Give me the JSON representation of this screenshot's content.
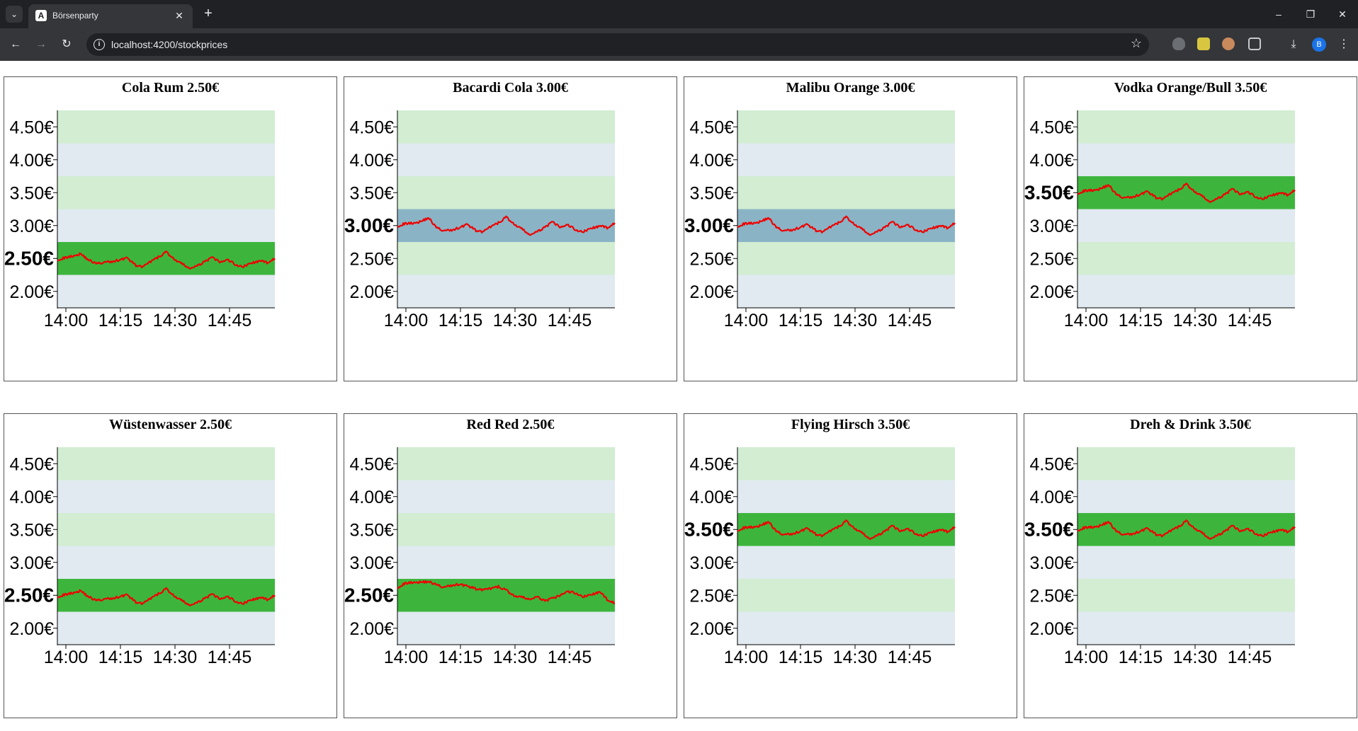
{
  "browser": {
    "tab_title": "Börsenparty",
    "favicon_letter": "A",
    "url": "localhost:4200/stockprices",
    "profile_initial": "B"
  },
  "chart_data": [
    {
      "type": "line",
      "title": "Cola Rum 2.50€",
      "price": 2.5,
      "ylim": [
        1.75,
        4.75
      ],
      "yticks": [
        "2.00€",
        "2.50€",
        "3.00€",
        "3.50€",
        "4.00€",
        "4.50€"
      ],
      "xticks": [
        "14:00",
        "14:15",
        "14:30",
        "14:45"
      ],
      "series": [
        {
          "values": [
            2.48,
            2.51,
            2.54,
            2.57,
            2.48,
            2.42,
            2.44,
            2.45,
            2.48,
            2.51,
            2.4,
            2.37,
            2.45,
            2.52,
            2.6,
            2.49,
            2.42,
            2.35,
            2.38,
            2.46,
            2.51,
            2.44,
            2.48,
            2.4,
            2.38,
            2.43,
            2.46,
            2.44,
            2.5
          ]
        }
      ]
    },
    {
      "type": "line",
      "title": "Bacardi Cola 3.00€",
      "price": 3.0,
      "ylim": [
        1.75,
        4.75
      ],
      "yticks": [
        "2.00€",
        "2.50€",
        "3.00€",
        "3.50€",
        "4.00€",
        "4.50€"
      ],
      "xticks": [
        "14:00",
        "14:15",
        "14:30",
        "14:45"
      ],
      "series": [
        {
          "values": [
            2.99,
            3.03,
            3.04,
            3.06,
            3.12,
            2.97,
            2.92,
            2.93,
            2.97,
            3.02,
            2.93,
            2.9,
            2.98,
            3.04,
            3.13,
            3.02,
            2.95,
            2.86,
            2.9,
            2.98,
            3.05,
            2.97,
            3.01,
            2.93,
            2.91,
            2.96,
            2.99,
            2.97,
            3.04
          ]
        }
      ]
    },
    {
      "type": "line",
      "title": "Malibu Orange 3.00€",
      "price": 3.0,
      "ylim": [
        1.75,
        4.75
      ],
      "yticks": [
        "2.00€",
        "2.50€",
        "3.00€",
        "3.50€",
        "4.00€",
        "4.50€"
      ],
      "xticks": [
        "14:00",
        "14:15",
        "14:30",
        "14:45"
      ],
      "series": [
        {
          "values": [
            2.99,
            3.03,
            3.04,
            3.06,
            3.12,
            2.97,
            2.92,
            2.93,
            2.97,
            3.02,
            2.93,
            2.9,
            2.98,
            3.04,
            3.13,
            3.02,
            2.95,
            2.86,
            2.9,
            2.98,
            3.05,
            2.97,
            3.01,
            2.93,
            2.91,
            2.96,
            2.99,
            2.97,
            3.04
          ]
        }
      ]
    },
    {
      "type": "line",
      "title": "Vodka Orange/Bull 3.50€",
      "price": 3.5,
      "ylim": [
        1.75,
        4.75
      ],
      "yticks": [
        "2.00€",
        "2.50€",
        "3.00€",
        "3.50€",
        "4.00€",
        "4.50€"
      ],
      "xticks": [
        "14:00",
        "14:15",
        "14:30",
        "14:45"
      ],
      "series": [
        {
          "values": [
            3.49,
            3.53,
            3.54,
            3.56,
            3.62,
            3.47,
            3.42,
            3.43,
            3.47,
            3.52,
            3.43,
            3.4,
            3.48,
            3.54,
            3.63,
            3.52,
            3.45,
            3.36,
            3.4,
            3.48,
            3.55,
            3.47,
            3.51,
            3.43,
            3.41,
            3.46,
            3.49,
            3.47,
            3.54
          ]
        }
      ]
    },
    {
      "type": "line",
      "title": "Wüstenwasser 2.50€",
      "price": 2.5,
      "ylim": [
        1.75,
        4.75
      ],
      "yticks": [
        "2.00€",
        "2.50€",
        "3.00€",
        "3.50€",
        "4.00€",
        "4.50€"
      ],
      "xticks": [
        "14:00",
        "14:15",
        "14:30",
        "14:45"
      ],
      "series": [
        {
          "values": [
            2.48,
            2.51,
            2.54,
            2.57,
            2.48,
            2.42,
            2.44,
            2.45,
            2.48,
            2.51,
            2.4,
            2.37,
            2.45,
            2.52,
            2.6,
            2.49,
            2.42,
            2.35,
            2.38,
            2.46,
            2.51,
            2.44,
            2.48,
            2.4,
            2.38,
            2.43,
            2.46,
            2.44,
            2.5
          ]
        }
      ]
    },
    {
      "type": "line",
      "title": "Red Red 2.50€",
      "price": 2.5,
      "ylim": [
        1.75,
        4.75
      ],
      "yticks": [
        "2.00€",
        "2.50€",
        "3.00€",
        "3.50€",
        "4.00€",
        "4.50€"
      ],
      "xticks": [
        "14:00",
        "14:15",
        "14:30",
        "14:45"
      ],
      "series": [
        {
          "values": [
            2.62,
            2.68,
            2.7,
            2.7,
            2.71,
            2.66,
            2.62,
            2.65,
            2.67,
            2.64,
            2.6,
            2.58,
            2.6,
            2.63,
            2.58,
            2.49,
            2.47,
            2.44,
            2.47,
            2.42,
            2.45,
            2.5,
            2.56,
            2.53,
            2.48,
            2.51,
            2.55,
            2.44,
            2.38
          ]
        }
      ]
    },
    {
      "type": "line",
      "title": "Flying Hirsch 3.50€",
      "price": 3.5,
      "ylim": [
        1.75,
        4.75
      ],
      "yticks": [
        "2.00€",
        "2.50€",
        "3.00€",
        "3.50€",
        "4.00€",
        "4.50€"
      ],
      "xticks": [
        "14:00",
        "14:15",
        "14:30",
        "14:45"
      ],
      "series": [
        {
          "values": [
            3.49,
            3.53,
            3.54,
            3.56,
            3.62,
            3.47,
            3.42,
            3.43,
            3.47,
            3.52,
            3.43,
            3.4,
            3.48,
            3.54,
            3.63,
            3.52,
            3.45,
            3.36,
            3.4,
            3.48,
            3.55,
            3.47,
            3.51,
            3.43,
            3.41,
            3.46,
            3.49,
            3.47,
            3.54
          ]
        }
      ]
    },
    {
      "type": "line",
      "title": "Dreh & Drink 3.50€",
      "price": 3.5,
      "ylim": [
        1.75,
        4.75
      ],
      "yticks": [
        "2.00€",
        "2.50€",
        "3.00€",
        "3.50€",
        "4.00€",
        "4.50€"
      ],
      "xticks": [
        "14:00",
        "14:15",
        "14:30",
        "14:45"
      ],
      "series": [
        {
          "values": [
            3.49,
            3.53,
            3.54,
            3.56,
            3.62,
            3.47,
            3.42,
            3.43,
            3.47,
            3.52,
            3.43,
            3.4,
            3.48,
            3.54,
            3.63,
            3.52,
            3.45,
            3.36,
            3.4,
            3.48,
            3.55,
            3.47,
            3.51,
            3.43,
            3.41,
            3.46,
            3.49,
            3.47,
            3.54
          ]
        }
      ]
    }
  ],
  "colors": {
    "band_light_green": "#d2edd2",
    "band_light_blue": "#e0eaf0",
    "band_active_green": "#3db53d",
    "band_active_blue": "#8ab4c5",
    "line": "#ee0000"
  }
}
